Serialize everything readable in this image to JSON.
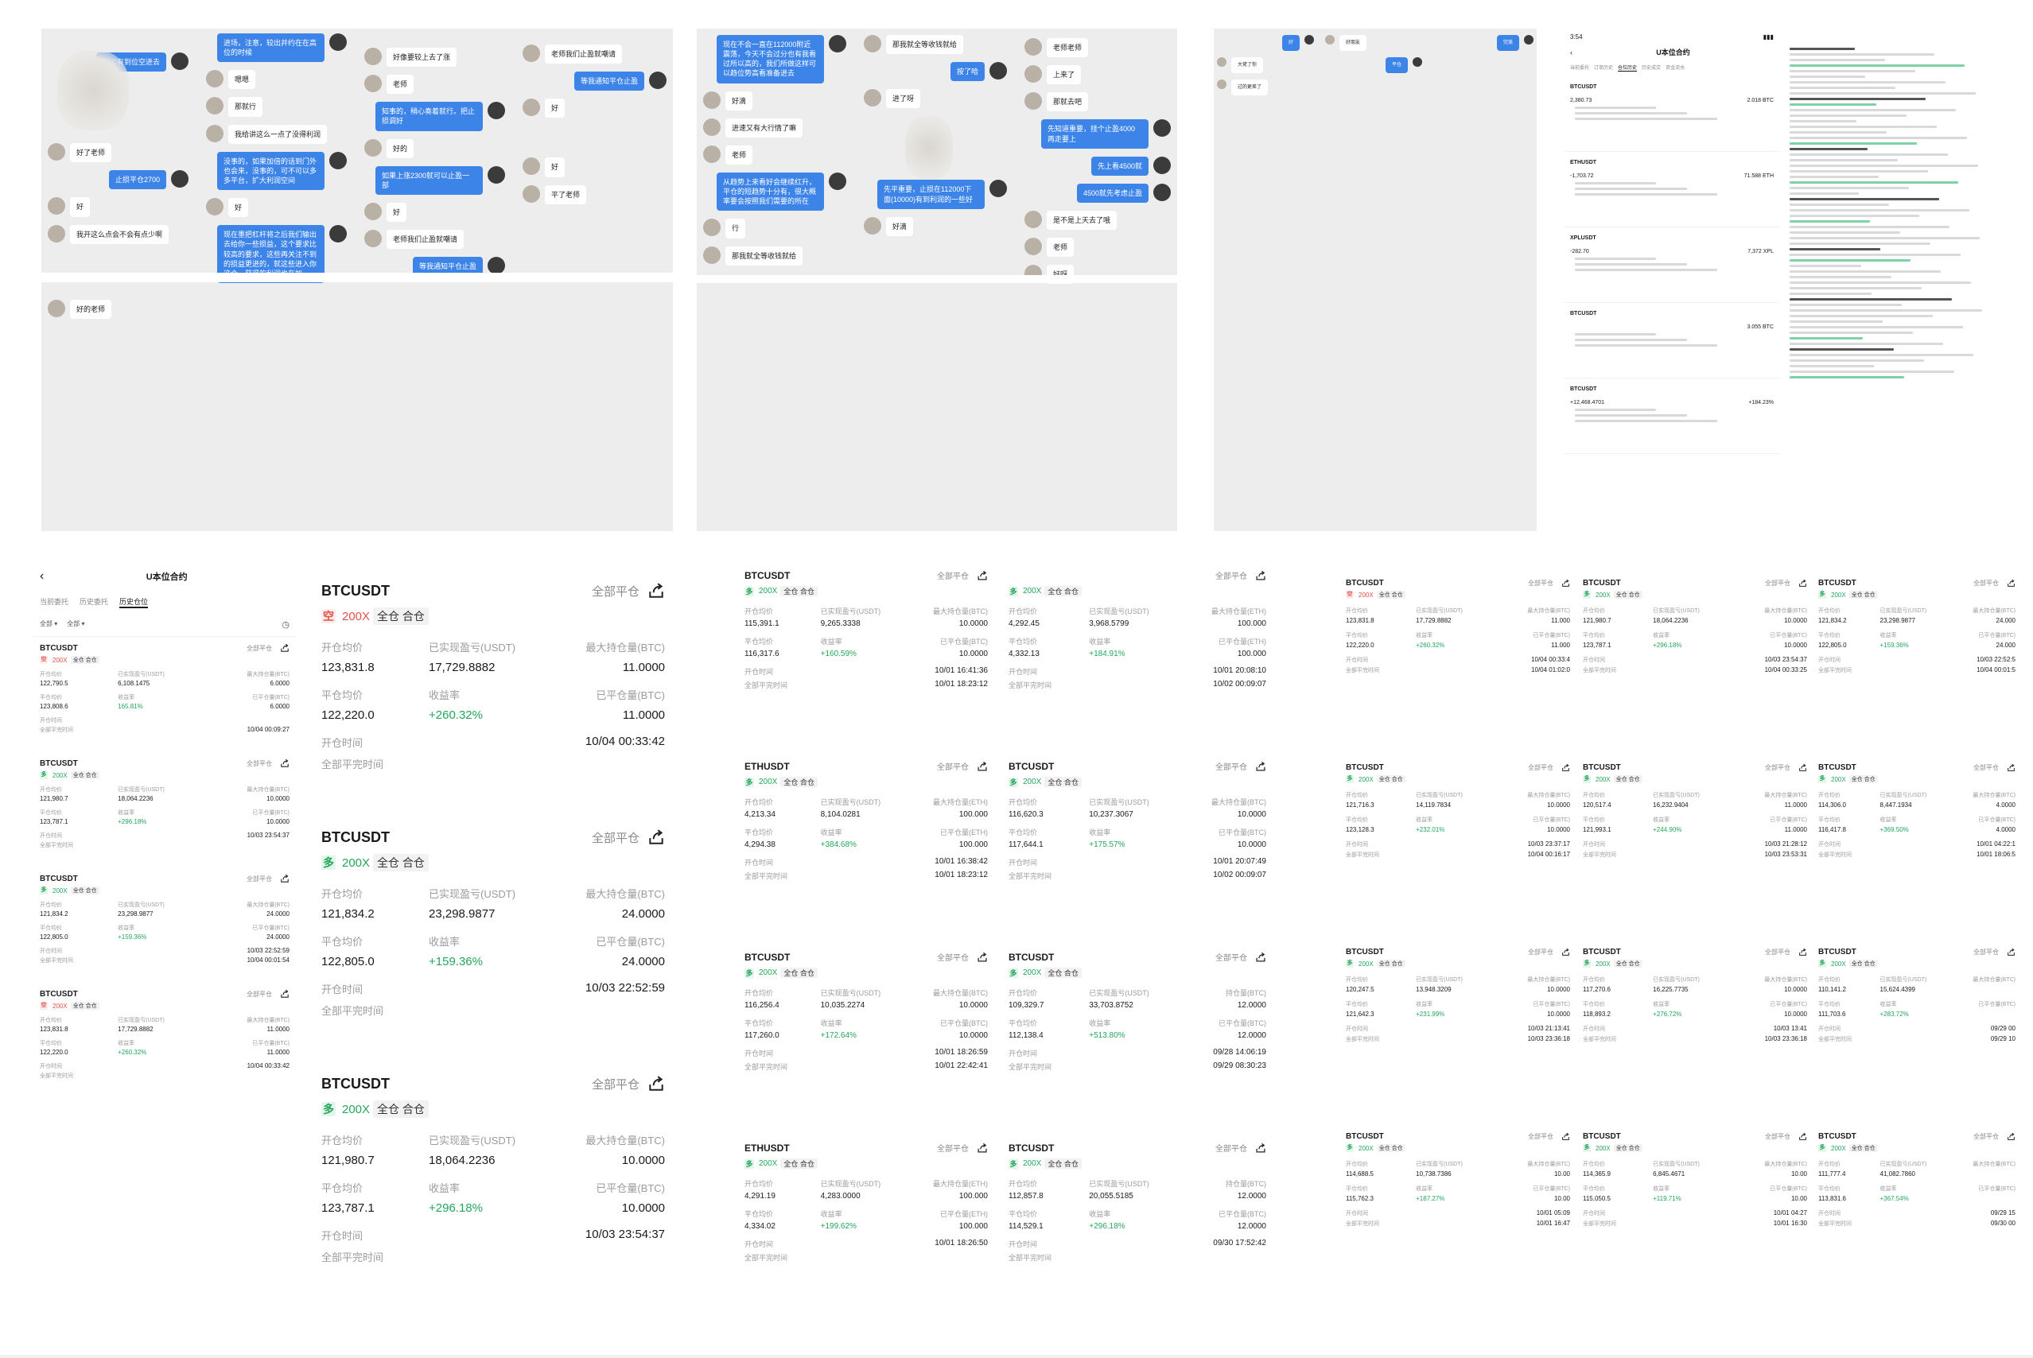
{
  "chat_texts": {
    "p1": [
      "BTC有到位空进去",
      "好了老师",
      "止损平仓2700",
      "好",
      "我开这么点会不会有点少啊",
      "好的老师",
      "进场，注意，较出并约在在高位的时候",
      "嗯嗯",
      "那就行",
      "我给讲这么一点了没得利润",
      "没事的，如果加倍的话到门外也会来，没事的，可不可以多多平台，扩大利润空间",
      "好",
      "现在墨把杠杆将之后我们输出去给你一些损益，这个要求比较高的要求，这些再关注不到的损益更进的，就这些进入你这个，获得的利润也在加",
      "好",
      "好像要较上去了涨",
      "老师",
      "知事的，稍心奏着就行。把止损调好",
      "好的",
      "如果上涨2300就可以止盈一部",
      "好",
      "老师我们止盈就嘲请",
      "等我通知平仓止盈",
      "老师我们止盈就嘲请",
      "等我通知平仓止盈",
      "好",
      "好",
      "平了老师"
    ],
    "p2": [
      "现在不会一直在112000附近震荡，今天不会过分也有我看过所以高的，我们所做这样可以趋位势高看准备进去",
      "好滴",
      "进速又有大行情了嘛",
      "老师",
      "从趋势上来看好会继续红升，平仓的短趋势十分有，很大概率要会按照我们需要的所在",
      "行",
      "那我就全等收钱就给",
      "先平重要，止损在112000下面(10000)有到利润的一些好",
      "好滴",
      "老师",
      "进了呀",
      "那我就全等收钱就给",
      "按了哈",
      "老师老师",
      "上来了",
      "那就去吧",
      "先知道重要，挂个止盈4000再走要上",
      "先上看4500就",
      "4500就先考虑止盈",
      "是不是上天去了哦",
      "老师",
      "好呀"
    ],
    "p3": [
      "好",
      "大佬了你",
      "过的更差了",
      "好朋友",
      "平仓",
      "完美"
    ]
  },
  "left_phone": {
    "back": "‹",
    "title": "U本位合约",
    "tabs": [
      "当前委托",
      "历史委托",
      "历史仓位"
    ],
    "filters": [
      "全部 ▾",
      "全部 ▾"
    ]
  },
  "labels": {
    "close_all": "全部平仓",
    "mode": "全仓 合仓",
    "lev": "200X",
    "avg_open": "开仓均价",
    "avg_close": "平仓均价",
    "realized": "已实现盈亏(USDT)",
    "roi": "收益率",
    "max_hold_btc": "最大持仓量(BTC)",
    "closed_btc": "已平仓量(BTC)",
    "max_hold_eth": "最大持仓量(ETH)",
    "closed_eth": "已平仓量(ETH)",
    "hold_btc": "持仓量(BTC)",
    "open_time": "开仓时间",
    "close_time": "全部平完时间",
    "long": "多",
    "short": "空"
  },
  "cards_left_small": [
    {
      "sym": "BTCUSDT",
      "dir": "short",
      "open": "122,790.5",
      "realized": "6,108.1475",
      "max": "6.0000",
      "close": "123,808.6",
      "roi": "165.81%",
      "closed": "6.0000",
      "open_time": "",
      "close_time": "10/04 00:09:27"
    },
    {
      "sym": "BTCUSDT",
      "dir": "long",
      "open": "121,980.7",
      "realized": "18,064.2236",
      "max": "10.0000",
      "close": "123,787.1",
      "roi": "+296.18%",
      "closed": "10.0000",
      "open_time": "10/03 23:54:37",
      "close_time": ""
    },
    {
      "sym": "BTCUSDT",
      "dir": "long",
      "open": "121,834.2",
      "realized": "23,298.9877",
      "max": "24.0000",
      "close": "122,805.0",
      "roi": "+159.36%",
      "closed": "24.0000",
      "open_time": "10/03 22:52:59",
      "close_time": "10/04 00:01:54"
    },
    {
      "sym": "BTCUSDT",
      "dir": "short",
      "open": "123,831.8",
      "realized": "17,729.8882",
      "max": "11.0000",
      "close": "122,220.0",
      "roi": "+260.32%",
      "closed": "11.0000",
      "open_time": "10/04 00:33:42",
      "close_time": ""
    }
  ],
  "cards_big": [
    {
      "sym": "BTCUSDT",
      "dir": "short",
      "open": "123,831.8",
      "realized": "17,729.8882",
      "max": "11.0000",
      "close": "122,220.0",
      "roi": "+260.32%",
      "closed": "11.0000",
      "open_time": "10/04 00:33:42"
    },
    {
      "sym": "BTCUSDT",
      "dir": "long",
      "open": "121,834.2",
      "realized": "23,298.9877",
      "max": "24.0000",
      "close": "122,805.0",
      "roi": "+159.36%",
      "closed": "24.0000",
      "open_time": "10/03 22:52:59"
    },
    {
      "sym": "BTCUSDT",
      "dir": "long",
      "open": "121,980.7",
      "realized": "18,064.2236",
      "max": "10.0000",
      "close": "123,787.1",
      "roi": "+296.18%",
      "closed": "10.0000",
      "open_time": "10/03 23:54:37"
    }
  ],
  "cards_col3": [
    {
      "sym": "BTCUSDT",
      "dir": "long",
      "open": "115,391.1",
      "realized": "9,265.3338",
      "max": "10.0000",
      "close": "116,317.6",
      "roi": "+160.59%",
      "closed": "10.0000",
      "open_time": "10/01 16:41:36",
      "close_time": "10/01 18:23:12"
    },
    {
      "sym": "ETHUSDT",
      "dir": "long",
      "open": "4,213.34",
      "realized": "8,104.0281",
      "max": "100.000",
      "close": "4,294.38",
      "roi": "+384.68%",
      "closed": "100.000",
      "open_time": "10/01 16:38:42",
      "close_time": "10/01 18:23:12",
      "eth": true
    },
    {
      "sym": "BTCUSDT",
      "dir": "long",
      "open": "116,256.4",
      "realized": "10,035.2274",
      "max": "10.0000",
      "close": "117,260.0",
      "roi": "+172.64%",
      "closed": "10.0000",
      "open_time": "10/01 18:26:59",
      "close_time": "10/01 22:42:41"
    },
    {
      "sym": "ETHUSDT",
      "dir": "long",
      "open": "4,291.19",
      "realized": "4,283.0000",
      "max": "100.000",
      "close": "4,334.02",
      "roi": "+199.62%",
      "closed": "100.000",
      "open_time": "10/01 18:26:50",
      "close_time": "",
      "eth": true
    }
  ],
  "cards_col4": [
    {
      "sym": "",
      "dir": "long",
      "open": "4,292.45",
      "realized": "3,968.5799",
      "max": "100.000",
      "close": "4,332.13",
      "roi": "+184.91%",
      "closed": "100.000",
      "open_time": "10/01 20:08:10",
      "close_time": "10/02 00:09:07",
      "eth": true
    },
    {
      "sym": "BTCUSDT",
      "dir": "long",
      "open": "116,620.3",
      "realized": "10,237.3067",
      "max": "10.0000",
      "close": "117,644.1",
      "roi": "+175.57%",
      "closed": "10.0000",
      "open_time": "10/01 20:07:49",
      "close_time": "10/02 00:09:07"
    },
    {
      "sym": "BTCUSDT",
      "dir": "long",
      "open": "109,329.7",
      "realized": "33,703.8752",
      "max": "12.0000",
      "close": "112,138.4",
      "roi": "+513.80%",
      "closed": "12.0000",
      "open_time": "09/28 14:06:19",
      "close_time": "09/29 08:30:23",
      "hold": true
    },
    {
      "sym": "BTCUSDT",
      "dir": "long",
      "open": "112,857.8",
      "realized": "20,055.5185",
      "max": "12.0000",
      "close": "114,529.1",
      "roi": "+296.18%",
      "closed": "12.0000",
      "open_time": "09/30 17:52:42",
      "close_time": "",
      "hold": true
    }
  ],
  "cards_col5": [
    {
      "sym": "BTCUSDT",
      "dir": "short",
      "open": "123,831.8",
      "realized": "17,729.8882",
      "max": "11.000",
      "close": "122,220.0",
      "roi": "+260.32%",
      "closed": "11.000",
      "open_time": "10/04 00:33:4",
      "close_time": "10/04 01:02:0"
    },
    {
      "sym": "BTCUSDT",
      "dir": "long",
      "open": "121,716.3",
      "realized": "14,119.7834",
      "max": "10.0000",
      "close": "123,128.3",
      "roi": "+232.01%",
      "closed": "10.0000",
      "open_time": "10/03 23:37:17",
      "close_time": "10/04 00:16:17"
    },
    {
      "sym": "BTCUSDT",
      "dir": "long",
      "open": "120,247.5",
      "realized": "13,948.3209",
      "max": "10.0000",
      "close": "121,642.3",
      "roi": "+231.99%",
      "closed": "10.0000",
      "open_time": "10/03 21:13:41",
      "close_time": "10/03 23:36:18"
    },
    {
      "sym": "BTCUSDT",
      "dir": "long",
      "open": "114,688.5",
      "realized": "10,738.7386",
      "max": "10.00",
      "close": "115,762.3",
      "roi": "+187.27%",
      "closed": "10.00",
      "open_time": "10/01 05:09",
      "close_time": "10/01 16:47"
    }
  ],
  "cards_col6": [
    {
      "sym": "BTCUSDT",
      "dir": "long",
      "open": "121,980.7",
      "realized": "18,064.2236",
      "max": "10.0000",
      "close": "123,787.1",
      "roi": "+296.18%",
      "closed": "10.0000",
      "open_time": "10/03 23:54:37",
      "close_time": "10/04 00:33:25"
    },
    {
      "sym": "BTCUSDT",
      "dir": "long",
      "open": "120,517.4",
      "realized": "16,232.9404",
      "max": "11.0000",
      "close": "121,993.1",
      "roi": "+244.90%",
      "closed": "11.0000",
      "open_time": "10/03 21:28:12",
      "close_time": "10/03 23:53:31"
    },
    {
      "sym": "BTCUSDT",
      "dir": "long",
      "open": "117,270.6",
      "realized": "16,225.7735",
      "max": "10.0000",
      "close": "118,893.2",
      "roi": "+276.72%",
      "closed": "10.0000",
      "open_time": "10/03 13:41",
      "close_time": "10/03 23:36:18"
    },
    {
      "sym": "BTCUSDT",
      "dir": "long",
      "open": "114,365.9",
      "realized": "6,845.4671",
      "max": "10.00",
      "close": "115,050.5",
      "roi": "+119.71%",
      "closed": "10.00",
      "open_time": "10/01 04:27",
      "close_time": "10/01 16:30"
    }
  ],
  "cards_col7": [
    {
      "sym": "BTCUSDT",
      "dir": "long",
      "open": "121,834.2",
      "realized": "23,298.9877",
      "max": "24.000",
      "close": "122,805.0",
      "roi": "+159.36%",
      "closed": "24.000",
      "open_time": "10/03 22:52:5",
      "close_time": "10/04 00:01:5"
    },
    {
      "sym": "BTCUSDT",
      "dir": "long",
      "open": "114,306.0",
      "realized": "8,447.1934",
      "max": "4.0000",
      "close": "116,417.8",
      "roi": "+369.50%",
      "closed": "4.0000",
      "open_time": "10/01 04:22:1",
      "close_time": "10/01 18:06:5"
    },
    {
      "sym": "BTCUSDT",
      "dir": "long",
      "open": "110,141.2",
      "realized": "15,624.4399",
      "max": "",
      "close": "111,703.6",
      "roi": "+283.72%",
      "closed": "",
      "open_time": "09/29 00",
      "close_time": "09/29 10"
    },
    {
      "sym": "BTCUSDT",
      "dir": "long",
      "open": "111,777.4",
      "realized": "41,082.7860",
      "max": "",
      "close": "113,831.6",
      "roi": "+367.54%",
      "closed": "",
      "open_time": "09/29 15",
      "close_time": "09/30 00"
    }
  ],
  "phone_panel": {
    "status_time": "3:54",
    "title": "U本位合约",
    "tabs": [
      "当前委托",
      "订单历史",
      "仓位历史",
      "历史成交",
      "资金流水"
    ],
    "rows": [
      {
        "sym": "BTCUSDT",
        "open": "2,380.73",
        "value": "2.018 BTC"
      },
      {
        "sym": "ETHUSDT",
        "open": "-1,703.72",
        "value": "71.588 ETH"
      },
      {
        "sym": "XPLUSDT",
        "open": "-282.70",
        "value": "7,372 XPL"
      },
      {
        "sym": "BTCUSDT",
        "open": "",
        "value": "3.055 BTC"
      },
      {
        "sym": "BTCUSDT",
        "open": "+12,468.4701",
        "value": "+184.23%"
      }
    ]
  }
}
